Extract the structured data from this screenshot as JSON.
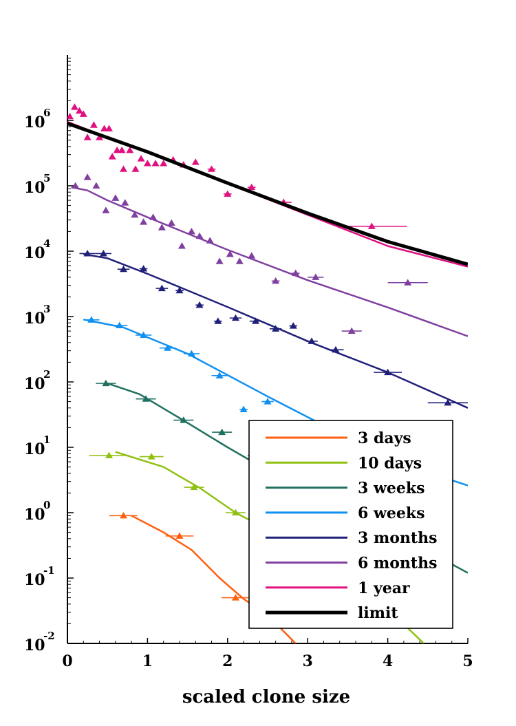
{
  "chart_data": {
    "type": "scatter",
    "xlabel": "scaled clone size",
    "ylabel": "",
    "x_ticks": [
      "0",
      "1",
      "2",
      "3",
      "4",
      "5"
    ],
    "xlim": [
      0,
      5
    ],
    "ylim": [
      0.01,
      10000000
    ],
    "y_scale": "log",
    "y_ticks": [
      {
        "base": "10",
        "exp": "-2",
        "value": 0.01
      },
      {
        "base": "10",
        "exp": "-1",
        "value": 0.1
      },
      {
        "base": "10",
        "exp": "0",
        "value": 1
      },
      {
        "base": "10",
        "exp": "1",
        "value": 10
      },
      {
        "base": "10",
        "exp": "2",
        "value": 100
      },
      {
        "base": "10",
        "exp": "3",
        "value": 1000
      },
      {
        "base": "10",
        "exp": "4",
        "value": 10000
      },
      {
        "base": "10",
        "exp": "5",
        "value": 100000
      },
      {
        "base": "10",
        "exp": "6",
        "value": 1000000
      }
    ],
    "grid": false,
    "legend_position": "bottom-right",
    "series": [
      {
        "name": "3 days",
        "color": "#ff6010",
        "line": [
          [
            0.8,
            0.9
          ],
          [
            1.2,
            0.5
          ],
          [
            1.55,
            0.27
          ],
          [
            1.9,
            0.1
          ],
          [
            2.2,
            0.048
          ],
          [
            2.5,
            0.027
          ],
          [
            2.85,
            0.01
          ]
        ],
        "points": [
          [
            0.7,
            0.9,
            0.35
          ],
          [
            1.4,
            0.44,
            0.35
          ],
          [
            2.1,
            0.05,
            0.35
          ]
        ]
      },
      {
        "name": "10 days",
        "color": "#90c010",
        "line": [
          [
            0.6,
            8.5
          ],
          [
            1.2,
            5
          ],
          [
            1.65,
            2.4
          ],
          [
            2.1,
            1.0
          ],
          [
            2.8,
            0.35
          ],
          [
            3.6,
            0.1
          ],
          [
            4.45,
            0.01
          ]
        ],
        "points": [
          [
            0.52,
            7.5,
            0.5
          ],
          [
            1.05,
            7.2,
            0.3
          ],
          [
            1.58,
            2.45,
            0.25
          ],
          [
            2.1,
            1.0,
            0.25
          ]
        ]
      },
      {
        "name": "3 weeks",
        "color": "#207060",
        "line": [
          [
            0.5,
            95
          ],
          [
            0.9,
            65
          ],
          [
            1.4,
            28
          ],
          [
            2.0,
            10
          ],
          [
            2.7,
            3.2
          ],
          [
            3.5,
            1.0
          ],
          [
            4.4,
            0.3
          ],
          [
            5.0,
            0.12
          ]
        ],
        "points": [
          [
            0.48,
            95,
            0.25
          ],
          [
            0.98,
            55,
            0.25
          ],
          [
            1.45,
            26,
            0.25
          ],
          [
            1.93,
            17,
            0.25
          ],
          [
            2.35,
            7.5,
            0.2
          ]
        ]
      },
      {
        "name": "6 weeks",
        "color": "#1090f0",
        "line": [
          [
            0.2,
            900
          ],
          [
            0.7,
            680
          ],
          [
            1.5,
            270
          ],
          [
            2.5,
            60
          ],
          [
            3.5,
            14
          ],
          [
            4.3,
            5
          ],
          [
            5.0,
            2.6
          ]
        ],
        "points": [
          [
            0.3,
            890,
            0.2
          ],
          [
            0.65,
            730,
            0.2
          ],
          [
            0.95,
            520,
            0.2
          ],
          [
            1.25,
            330,
            0.2
          ],
          [
            1.55,
            270,
            0.2
          ],
          [
            1.9,
            125,
            0.2
          ],
          [
            2.2,
            38,
            0.1
          ],
          [
            2.5,
            50,
            0.15
          ]
        ]
      },
      {
        "name": "3 months",
        "color": "#20207a",
        "line": [
          [
            0.2,
            9000
          ],
          [
            0.5,
            7800
          ],
          [
            1.0,
            4500
          ],
          [
            2.0,
            1400
          ],
          [
            3.0,
            420
          ],
          [
            4.0,
            140
          ],
          [
            5.0,
            40
          ]
        ],
        "points": [
          [
            0.25,
            9200,
            0.2
          ],
          [
            0.45,
            9200,
            0.2
          ],
          [
            0.7,
            5300,
            0.15
          ],
          [
            0.95,
            5400,
            0.1
          ],
          [
            1.18,
            2700,
            0.15
          ],
          [
            1.4,
            2500,
            0.1
          ],
          [
            1.65,
            1500,
            0.1
          ],
          [
            1.88,
            850,
            0.1
          ],
          [
            2.1,
            950,
            0.15
          ],
          [
            2.35,
            850,
            0.15
          ],
          [
            2.6,
            650,
            0.15
          ],
          [
            2.82,
            720,
            0.1
          ],
          [
            3.05,
            420,
            0.15
          ],
          [
            3.35,
            310,
            0.2
          ],
          [
            4.0,
            140,
            0.35
          ],
          [
            4.75,
            48,
            0.5
          ]
        ]
      },
      {
        "name": "6 months",
        "color": "#8040a0",
        "line": [
          [
            0.05,
            95000
          ],
          [
            0.25,
            85000
          ],
          [
            0.5,
            60000
          ],
          [
            1.0,
            33000
          ],
          [
            2.0,
            10500
          ],
          [
            3.0,
            3600
          ],
          [
            4.0,
            1380
          ],
          [
            5.0,
            500
          ]
        ],
        "points": [
          [
            0.1,
            100000,
            0.0
          ],
          [
            0.25,
            135000,
            0.0
          ],
          [
            0.36,
            100000,
            0.0
          ],
          [
            0.48,
            42000,
            0.0
          ],
          [
            0.6,
            65000,
            0.0
          ],
          [
            0.72,
            55000,
            0.0
          ],
          [
            0.84,
            36000,
            0.0
          ],
          [
            0.95,
            28000,
            0.0
          ],
          [
            1.07,
            33000,
            0.0
          ],
          [
            1.18,
            23000,
            0.0
          ],
          [
            1.3,
            27000,
            0.0
          ],
          [
            1.43,
            12000,
            0.0
          ],
          [
            1.55,
            20000,
            0.0
          ],
          [
            1.65,
            17000,
            0.0
          ],
          [
            1.78,
            14500,
            0.0
          ],
          [
            1.9,
            7000,
            0.0
          ],
          [
            2.03,
            9000,
            0.0
          ],
          [
            2.15,
            7000,
            0.0
          ],
          [
            2.3,
            8500,
            0.0
          ],
          [
            2.6,
            3500,
            0.1
          ],
          [
            2.85,
            4600,
            0.1
          ],
          [
            3.1,
            4000,
            0.2
          ],
          [
            3.55,
            600,
            0.25
          ],
          [
            4.25,
            3300,
            0.5
          ]
        ]
      },
      {
        "name": "1 year",
        "color": "#e01080",
        "line": [
          [
            0.0,
            950000
          ],
          [
            1.0,
            320000
          ],
          [
            2.0,
            108000
          ],
          [
            3.0,
            36000
          ],
          [
            4.0,
            12000
          ],
          [
            5.0,
            5800
          ]
        ],
        "points": [
          [
            0.03,
            1150000,
            0.0
          ],
          [
            0.09,
            1600000,
            0.0
          ],
          [
            0.15,
            1400000,
            0.0
          ],
          [
            0.2,
            1250000,
            0.0
          ],
          [
            0.25,
            550000,
            0.0
          ],
          [
            0.33,
            850000,
            0.0
          ],
          [
            0.4,
            550000,
            0.0
          ],
          [
            0.46,
            750000,
            0.0
          ],
          [
            0.52,
            750000,
            0.0
          ],
          [
            0.56,
            280000,
            0.0
          ],
          [
            0.62,
            350000,
            0.0
          ],
          [
            0.68,
            350000,
            0.0
          ],
          [
            0.7,
            180000,
            0.0
          ],
          [
            0.78,
            350000,
            0.0
          ],
          [
            0.85,
            180000,
            0.0
          ],
          [
            0.92,
            260000,
            0.0
          ],
          [
            1.0,
            220000,
            0.0
          ],
          [
            1.1,
            220000,
            0.0
          ],
          [
            1.2,
            220000,
            0.0
          ],
          [
            1.32,
            250000,
            0.0
          ],
          [
            1.45,
            210000,
            0.05
          ],
          [
            1.6,
            230000,
            0.05
          ],
          [
            1.8,
            180000,
            0.1
          ],
          [
            2.0,
            75000,
            0.1
          ],
          [
            2.3,
            95000,
            0.1
          ],
          [
            2.7,
            56000,
            0.2
          ],
          [
            3.8,
            24000,
            0.88
          ]
        ]
      },
      {
        "name": "limit",
        "color": "#000000",
        "line": [
          [
            0.0,
            900000
          ],
          [
            1.0,
            330000
          ],
          [
            2.0,
            110000
          ],
          [
            3.0,
            38000
          ],
          [
            4.0,
            14000
          ],
          [
            5.0,
            6300
          ]
        ],
        "points": []
      }
    ]
  }
}
